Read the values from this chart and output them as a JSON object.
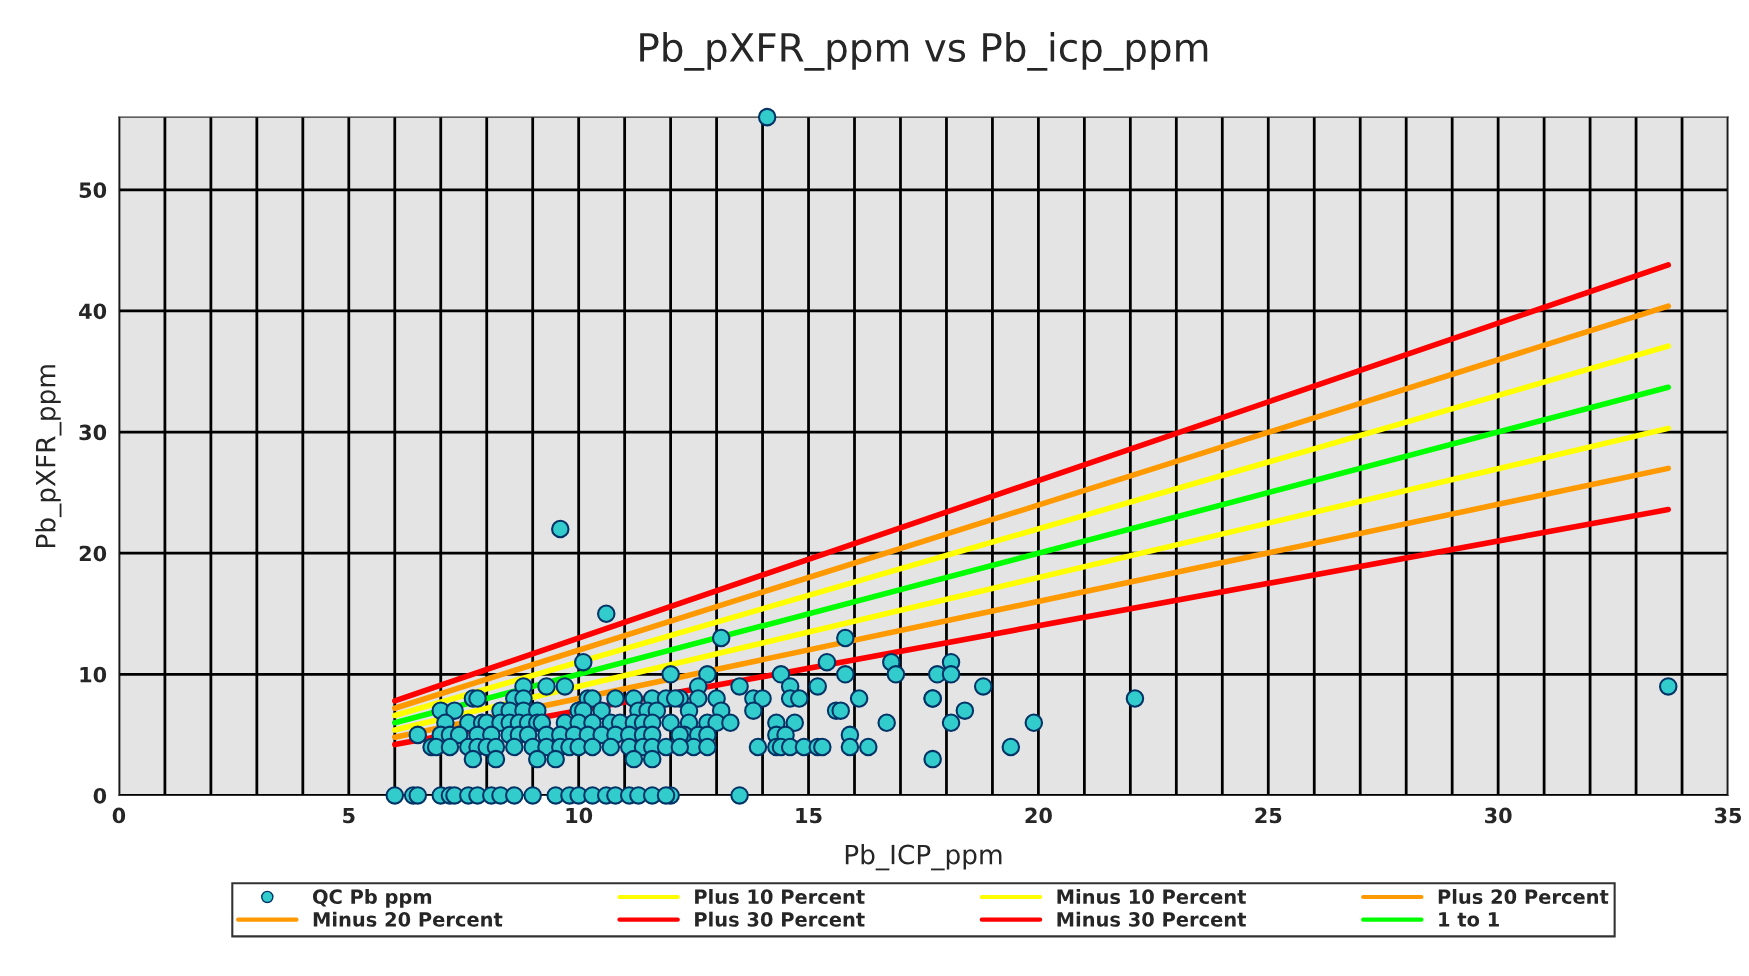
{
  "chart_data": {
    "type": "scatter",
    "title": "Pb_pXFR_ppm vs Pb_icp_ppm",
    "xlabel": "Pb_ICP_ppm",
    "ylabel": "Pb_pXFR_ppm",
    "xlim": [
      0,
      35
    ],
    "ylim": [
      0,
      56
    ],
    "xticks": [
      0,
      {
        "value": 1,
        "label": null
      },
      {
        "value": 2,
        "label": null
      },
      {
        "value": 3,
        "label": null
      },
      {
        "value": 4,
        "label": null
      },
      5,
      {
        "value": 6,
        "label": null
      },
      {
        "value": 7,
        "label": null
      },
      {
        "value": 8,
        "label": null
      },
      {
        "value": 9,
        "label": null
      },
      10,
      {
        "value": 11,
        "label": null
      },
      {
        "value": 12,
        "label": null
      },
      {
        "value": 13,
        "label": null
      },
      {
        "value": 14,
        "label": null
      },
      15,
      {
        "value": 16,
        "label": null
      },
      {
        "value": 17,
        "label": null
      },
      {
        "value": 18,
        "label": null
      },
      {
        "value": 19,
        "label": null
      },
      20,
      {
        "value": 21,
        "label": null
      },
      {
        "value": 22,
        "label": null
      },
      {
        "value": 23,
        "label": null
      },
      {
        "value": 24,
        "label": null
      },
      25,
      {
        "value": 26,
        "label": null
      },
      {
        "value": 27,
        "label": null
      },
      {
        "value": 28,
        "label": null
      },
      {
        "value": 29,
        "label": null
      },
      30,
      {
        "value": 31,
        "label": null
      },
      {
        "value": 32,
        "label": null
      },
      {
        "value": 33,
        "label": null
      },
      {
        "value": 34,
        "label": null
      },
      35
    ],
    "yticks": [
      0,
      10,
      20,
      30,
      40,
      50
    ],
    "grid": true,
    "legend": "bottom",
    "series": [
      {
        "name": "QC Pb ppm",
        "marker": "circle",
        "color": "#33cccc",
        "x": [
          14.1,
          9.6,
          10.6,
          13.1,
          10.1,
          12.0,
          12.8,
          14.4,
          15.8,
          15.4,
          15.8,
          16.8,
          16.9,
          17.8,
          18.1,
          18.1,
          18.8,
          18.4,
          18.1,
          17.7,
          17.7,
          19.4,
          19.9,
          22.1,
          33.7,
          13.5,
          12.0,
          12.6,
          13.5,
          14.6,
          15.2,
          12.2,
          12.6,
          13.0,
          13.8,
          14.0,
          14.6,
          14.8,
          16.1,
          17.7,
          12.4,
          13.1,
          13.8,
          15.6,
          15.7,
          12.0,
          12.4,
          12.8,
          13.0,
          13.3,
          14.3,
          14.7,
          16.7,
          12.3,
          12.6,
          12.8,
          14.3,
          14.5,
          15.9,
          12.5,
          12.8,
          13.9,
          14.3,
          14.4,
          14.6,
          14.9,
          15.2,
          15.3,
          15.9,
          16.3,
          8.8,
          9.3,
          9.7,
          7.7,
          7.8,
          8.6,
          8.8,
          10.2,
          10.3,
          10.8,
          11.2,
          11.6,
          11.9,
          12.1,
          7.0,
          7.3,
          8.3,
          8.5,
          8.8,
          9.1,
          10.0,
          10.1,
          10.5,
          11.3,
          11.5,
          11.7,
          7.1,
          7.6,
          7.9,
          8.0,
          8.3,
          8.5,
          8.7,
          8.9,
          9.1,
          9.2,
          9.7,
          10.0,
          10.3,
          10.7,
          10.9,
          11.2,
          11.4,
          11.6,
          6.5,
          7.0,
          7.2,
          7.4,
          7.8,
          8.1,
          8.5,
          8.7,
          8.9,
          9.3,
          9.6,
          9.9,
          10.2,
          10.5,
          10.8,
          11.1,
          11.4,
          11.6,
          12.2,
          6.8,
          6.9,
          7.2,
          7.6,
          7.8,
          8.0,
          8.2,
          8.6,
          9.0,
          9.3,
          9.6,
          9.8,
          10.0,
          10.3,
          10.7,
          11.1,
          11.4,
          11.6,
          11.9,
          12.2,
          7.7,
          8.2,
          9.1,
          9.5,
          11.2,
          11.6,
          6.0,
          6.4,
          6.5,
          7.0,
          7.2,
          7.3,
          7.6,
          7.8,
          8.1,
          8.3,
          8.6,
          9.0,
          9.5,
          9.8,
          10.0,
          10.3,
          10.6,
          10.8,
          11.1,
          11.3,
          11.6,
          11.9
        ],
        "values": [
          56,
          22,
          15,
          13,
          11,
          10,
          10,
          10,
          13,
          11,
          10,
          11,
          10,
          10,
          11,
          10,
          9,
          7,
          6,
          8,
          3,
          4,
          6,
          8,
          9,
          0,
          0,
          9,
          9,
          9,
          9,
          8,
          8,
          8,
          8,
          8,
          8,
          8,
          8,
          8,
          7,
          7,
          7,
          7,
          7,
          6,
          6,
          6,
          6,
          6,
          6,
          6,
          6,
          5,
          5,
          5,
          5,
          5,
          5,
          4,
          4,
          4,
          4,
          4,
          4,
          4,
          4,
          4,
          4,
          4,
          9,
          9,
          9,
          8,
          8,
          8,
          8,
          8,
          8,
          8,
          8,
          8,
          8,
          8,
          7,
          7,
          7,
          7,
          7,
          7,
          7,
          7,
          7,
          7,
          7,
          7,
          6,
          6,
          6,
          6,
          6,
          6,
          6,
          6,
          6,
          6,
          6,
          6,
          6,
          6,
          6,
          6,
          6,
          6,
          5,
          5,
          5,
          5,
          5,
          5,
          5,
          5,
          5,
          5,
          5,
          5,
          5,
          5,
          5,
          5,
          5,
          5,
          5,
          4,
          4,
          4,
          4,
          4,
          4,
          4,
          4,
          4,
          4,
          4,
          4,
          4,
          4,
          4,
          4,
          4,
          4,
          4,
          4,
          3,
          3,
          3,
          3,
          3,
          3,
          0,
          0,
          0,
          0,
          0,
          0,
          0,
          0,
          0,
          0,
          0,
          0,
          0,
          0,
          0,
          0,
          0,
          0,
          0,
          0,
          0,
          0
        ]
      },
      {
        "name": "Plus 10 Percent",
        "type": "line",
        "color": "#ffff00",
        "x": [
          6.0,
          33.7
        ],
        "values": [
          6.6,
          37.1
        ]
      },
      {
        "name": "Minus 10 Percent",
        "type": "line",
        "color": "#ffff00",
        "x": [
          6.0,
          33.7
        ],
        "values": [
          5.4,
          30.3
        ]
      },
      {
        "name": "Plus 20 Percent",
        "type": "line",
        "color": "#ff9900",
        "x": [
          6.0,
          33.7
        ],
        "values": [
          7.2,
          40.4
        ]
      },
      {
        "name": "Minus 20 Percent",
        "type": "line",
        "color": "#ff9900",
        "x": [
          6.0,
          33.7
        ],
        "values": [
          4.8,
          27.0
        ]
      },
      {
        "name": "Plus 30 Percent",
        "type": "line",
        "color": "#ff0000",
        "x": [
          6.0,
          33.7
        ],
        "values": [
          7.8,
          43.8
        ]
      },
      {
        "name": "Minus 30 Percent",
        "type": "line",
        "color": "#ff0000",
        "x": [
          6.0,
          33.7
        ],
        "values": [
          4.2,
          23.6
        ]
      },
      {
        "name": "1 to 1",
        "type": "line",
        "color": "#00ff00",
        "x": [
          6.0,
          33.7
        ],
        "values": [
          6.0,
          33.7
        ]
      }
    ]
  }
}
